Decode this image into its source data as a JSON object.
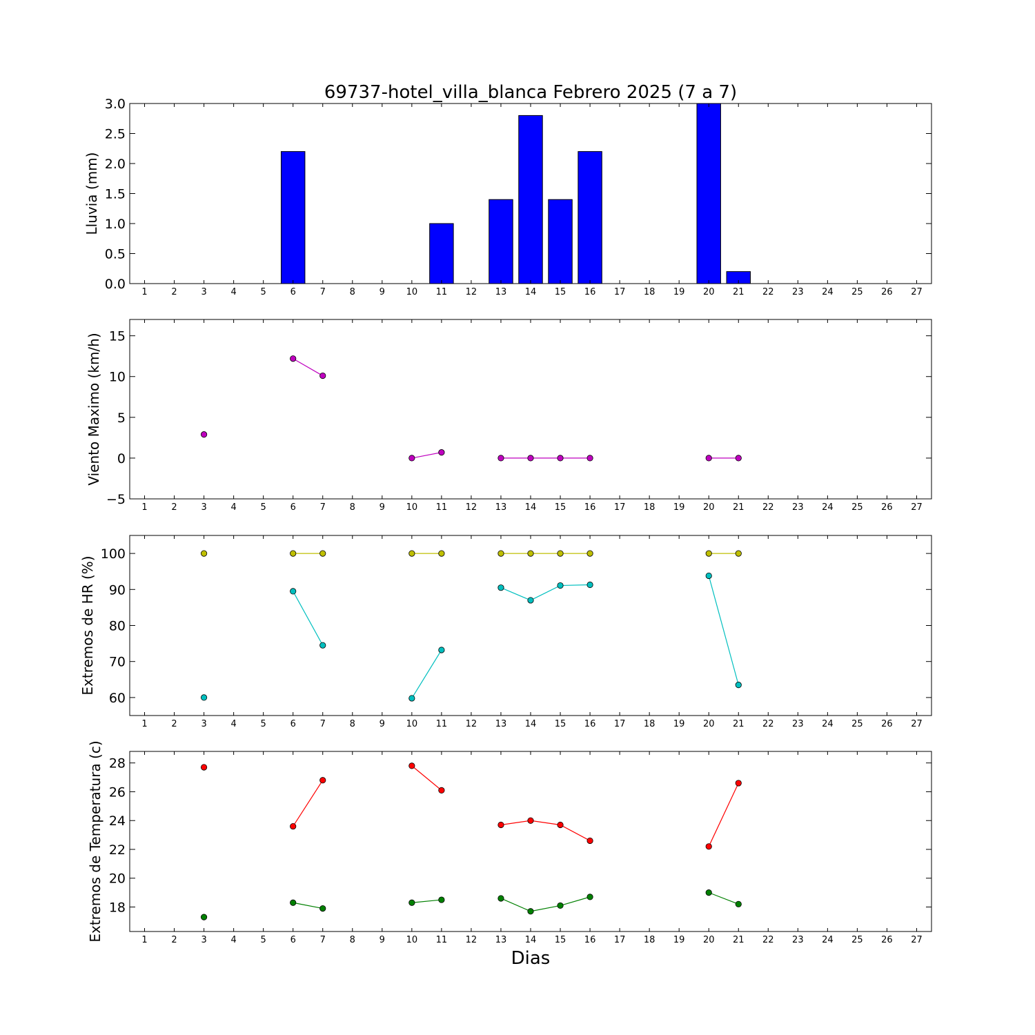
{
  "figure": {
    "title": "69737-hotel_villa_blanca Febrero 2025  (7 a 7)",
    "xlabel": "Dias"
  },
  "chart_data": [
    {
      "type": "bar",
      "ylabel": "Lluvia (mm)",
      "xlim": [
        0.5,
        27.5
      ],
      "ylim": [
        0,
        3.0
      ],
      "xticks": [
        1,
        2,
        3,
        4,
        5,
        6,
        7,
        8,
        9,
        10,
        11,
        12,
        13,
        14,
        15,
        16,
        17,
        18,
        19,
        20,
        21,
        22,
        23,
        24,
        25,
        26,
        27
      ],
      "yticks": [
        "0.0",
        "0.5",
        "1.0",
        "1.5",
        "2.0",
        "2.5",
        "3.0"
      ],
      "grid": false,
      "bar_color": "#0000ff",
      "x": [
        3,
        6,
        7,
        10,
        11,
        13,
        14,
        15,
        16,
        20,
        21
      ],
      "values": [
        0,
        2.2,
        0,
        0,
        1.0,
        1.4,
        2.8,
        1.4,
        2.2,
        3.0,
        0.2
      ]
    },
    {
      "type": "line",
      "ylabel": "Viento Maximo (km/h)",
      "xlim": [
        0.5,
        27.5
      ],
      "ylim": [
        -5,
        17
      ],
      "xticks": [
        1,
        2,
        3,
        4,
        5,
        6,
        7,
        8,
        9,
        10,
        11,
        12,
        13,
        14,
        15,
        16,
        17,
        18,
        19,
        20,
        21,
        22,
        23,
        24,
        25,
        26,
        27
      ],
      "yticks": [
        "−5",
        "0",
        "5",
        "10",
        "15"
      ],
      "grid": false,
      "series": [
        {
          "color": "#bf00bf",
          "x": [
            3,
            6,
            7,
            10,
            11,
            13,
            14,
            15,
            16,
            20,
            21
          ],
          "values": [
            2.9,
            12.2,
            10.1,
            0,
            0.7,
            0,
            0,
            0,
            0,
            0,
            0
          ]
        }
      ]
    },
    {
      "type": "line",
      "ylabel": "Extremos de HR (%)",
      "xlim": [
        0.5,
        27.5
      ],
      "ylim": [
        55,
        105
      ],
      "xticks": [
        1,
        2,
        3,
        4,
        5,
        6,
        7,
        8,
        9,
        10,
        11,
        12,
        13,
        14,
        15,
        16,
        17,
        18,
        19,
        20,
        21,
        22,
        23,
        24,
        25,
        26,
        27
      ],
      "yticks": [
        "60",
        "70",
        "80",
        "90",
        "100"
      ],
      "grid": false,
      "series": [
        {
          "color": "#bfbf00",
          "x": [
            3,
            6,
            7,
            10,
            11,
            13,
            14,
            15,
            16,
            20,
            21
          ],
          "values": [
            100,
            100,
            100,
            100,
            100,
            100,
            100,
            100,
            100,
            100,
            100
          ]
        },
        {
          "color": "#00bfbf",
          "x": [
            3,
            6,
            7,
            10,
            11,
            13,
            14,
            15,
            16,
            20,
            21
          ],
          "values": [
            60,
            89.5,
            74.5,
            59.8,
            73.2,
            90.5,
            87,
            91.1,
            91.3,
            93.8,
            63.5
          ]
        }
      ]
    },
    {
      "type": "line",
      "ylabel": "Extremos de Temperatura (c)",
      "xlim": [
        0.5,
        27.5
      ],
      "ylim": [
        16.3,
        28.8
      ],
      "xticks": [
        1,
        2,
        3,
        4,
        5,
        6,
        7,
        8,
        9,
        10,
        11,
        12,
        13,
        14,
        15,
        16,
        17,
        18,
        19,
        20,
        21,
        22,
        23,
        24,
        25,
        26,
        27
      ],
      "yticks": [
        "18",
        "20",
        "22",
        "24",
        "26",
        "28"
      ],
      "grid": false,
      "series": [
        {
          "color": "#ff0000",
          "x": [
            3,
            6,
            7,
            10,
            11,
            13,
            14,
            15,
            16,
            20,
            21
          ],
          "values": [
            27.7,
            23.6,
            26.8,
            27.8,
            26.1,
            23.7,
            24.0,
            23.7,
            22.6,
            22.2,
            26.6
          ]
        },
        {
          "color": "#008000",
          "x": [
            3,
            6,
            7,
            10,
            11,
            13,
            14,
            15,
            16,
            20,
            21
          ],
          "values": [
            17.3,
            18.3,
            17.9,
            18.3,
            18.5,
            18.6,
            17.7,
            18.1,
            18.7,
            19.0,
            18.2
          ]
        }
      ]
    }
  ]
}
